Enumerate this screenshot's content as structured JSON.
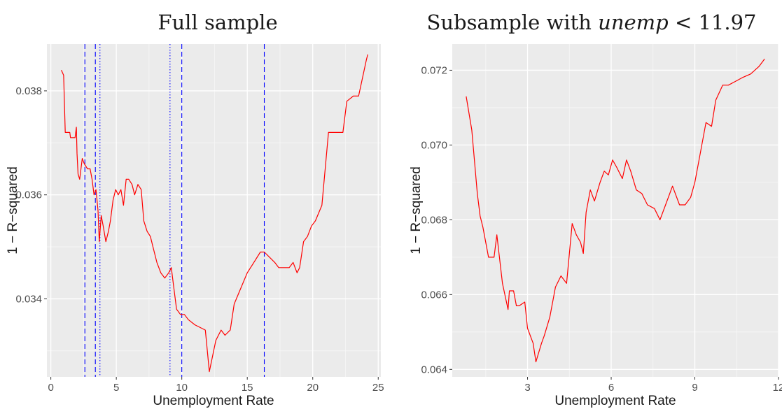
{
  "chart_data": [
    {
      "type": "line",
      "title": "Full sample",
      "xlabel": "Unemployment Rate",
      "ylabel": "1 − R−squared",
      "xlim": [
        -0.3,
        25.2
      ],
      "ylim": [
        0.0325,
        0.0389
      ],
      "x_ticks": [
        0,
        5,
        10,
        15,
        20,
        25
      ],
      "x_tick_labels": [
        "0",
        "5",
        "10",
        "15",
        "20",
        "25"
      ],
      "y_ticks": [
        0.034,
        0.036,
        0.038
      ],
      "y_tick_labels": [
        "0.034",
        "0.036",
        "0.038"
      ],
      "grid": true,
      "background": "#ebebeb",
      "line_color": "#ff0000",
      "vline_color": "#0000ff",
      "vlines": [
        {
          "x": 2.6,
          "style": "dashed"
        },
        {
          "x": 3.4,
          "style": "dashed"
        },
        {
          "x": 3.75,
          "style": "dotted"
        },
        {
          "x": 9.1,
          "style": "dotted"
        },
        {
          "x": 10.0,
          "style": "dashed"
        },
        {
          "x": 16.3,
          "style": "dashed"
        }
      ],
      "x": [
        0.8,
        0.98,
        1.1,
        1.45,
        1.5,
        1.85,
        1.95,
        2.0,
        2.08,
        2.2,
        2.4,
        2.55,
        2.8,
        3.0,
        3.15,
        3.3,
        3.45,
        3.6,
        3.7,
        3.85,
        4.0,
        4.2,
        4.4,
        4.55,
        4.75,
        4.95,
        5.15,
        5.35,
        5.55,
        5.75,
        5.95,
        6.2,
        6.4,
        6.65,
        6.9,
        7.1,
        7.35,
        7.6,
        7.8,
        8.1,
        8.4,
        8.7,
        9.0,
        9.2,
        9.4,
        9.6,
        9.9,
        10.2,
        10.5,
        11.0,
        11.8,
        12.1,
        12.6,
        13.0,
        13.3,
        13.7,
        14.0,
        14.5,
        15.0,
        15.5,
        16.0,
        16.3,
        16.7,
        17.1,
        17.4,
        17.8,
        18.2,
        18.5,
        18.8,
        19.0,
        19.3,
        19.6,
        19.9,
        20.2,
        20.7,
        21.2,
        21.7,
        22.3,
        22.6,
        23.1,
        23.5,
        24.1,
        24.2
      ],
      "values": [
        0.0384,
        0.0383,
        0.0372,
        0.0372,
        0.0371,
        0.0371,
        0.0373,
        0.0368,
        0.0364,
        0.0363,
        0.0367,
        0.0366,
        0.0365,
        0.0365,
        0.0363,
        0.036,
        0.0361,
        0.0357,
        0.0351,
        0.0356,
        0.0354,
        0.0351,
        0.0353,
        0.0355,
        0.0359,
        0.0361,
        0.036,
        0.0361,
        0.0358,
        0.0363,
        0.0363,
        0.0362,
        0.036,
        0.0362,
        0.0361,
        0.0355,
        0.0353,
        0.0352,
        0.035,
        0.0347,
        0.0345,
        0.0344,
        0.0345,
        0.0346,
        0.0342,
        0.0338,
        0.0337,
        0.0337,
        0.0336,
        0.0335,
        0.0334,
        0.0326,
        0.0332,
        0.0334,
        0.0333,
        0.0334,
        0.0339,
        0.0342,
        0.0345,
        0.0347,
        0.0349,
        0.0349,
        0.0348,
        0.0347,
        0.0346,
        0.0346,
        0.0346,
        0.0347,
        0.0345,
        0.0346,
        0.0351,
        0.0352,
        0.0354,
        0.0355,
        0.0358,
        0.0372,
        0.0372,
        0.0372,
        0.0378,
        0.0379,
        0.0379,
        0.0386,
        0.0387
      ]
    },
    {
      "type": "line",
      "title": "Subsample with ",
      "title_math": "unemp",
      "title_suffix": " < 11.97",
      "xlabel": "Unemployment Rate",
      "ylabel": "1 − R−squared",
      "xlim": [
        0.3,
        12.0
      ],
      "ylim": [
        0.0638,
        0.0727
      ],
      "x_ticks": [
        3,
        6,
        9,
        12
      ],
      "x_tick_labels": [
        "3",
        "6",
        "9",
        "12"
      ],
      "y_ticks": [
        0.064,
        0.066,
        0.068,
        0.07,
        0.072
      ],
      "y_tick_labels": [
        "0.064",
        "0.066",
        "0.068",
        "0.070",
        "0.072"
      ],
      "grid": true,
      "background": "#ebebeb",
      "line_color": "#ff0000",
      "vlines": [],
      "x": [
        0.8,
        1.0,
        1.2,
        1.3,
        1.4,
        1.6,
        1.8,
        1.9,
        2.1,
        2.3,
        2.35,
        2.5,
        2.6,
        2.7,
        2.9,
        3.0,
        3.2,
        3.3,
        3.5,
        3.6,
        3.8,
        4.0,
        4.2,
        4.4,
        4.6,
        4.75,
        4.9,
        5.0,
        5.1,
        5.25,
        5.4,
        5.6,
        5.75,
        5.9,
        6.05,
        6.2,
        6.4,
        6.55,
        6.7,
        6.9,
        7.1,
        7.3,
        7.55,
        7.75,
        7.95,
        8.2,
        8.45,
        8.65,
        8.85,
        9.0,
        9.15,
        9.4,
        9.6,
        9.75,
        10.0,
        10.2,
        10.45,
        10.7,
        11.0,
        11.3,
        11.5
      ],
      "values": [
        0.0713,
        0.0704,
        0.0687,
        0.0681,
        0.0678,
        0.067,
        0.067,
        0.0676,
        0.0663,
        0.0656,
        0.0661,
        0.0661,
        0.0657,
        0.0657,
        0.0658,
        0.0651,
        0.0647,
        0.0642,
        0.0647,
        0.0649,
        0.0654,
        0.0662,
        0.0665,
        0.0663,
        0.0679,
        0.0676,
        0.0674,
        0.0671,
        0.0682,
        0.0688,
        0.0685,
        0.069,
        0.0693,
        0.0692,
        0.0696,
        0.0694,
        0.0691,
        0.0696,
        0.0693,
        0.0688,
        0.0687,
        0.0684,
        0.0683,
        0.068,
        0.0684,
        0.0689,
        0.0684,
        0.0684,
        0.0686,
        0.069,
        0.0696,
        0.0706,
        0.0705,
        0.0712,
        0.0716,
        0.0716,
        0.0717,
        0.0718,
        0.0719,
        0.0721,
        0.0723
      ]
    }
  ]
}
